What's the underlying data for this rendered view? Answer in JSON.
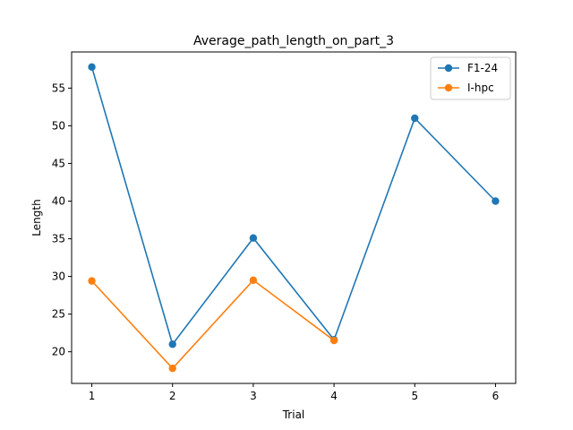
{
  "chart_data": {
    "type": "line",
    "title": "Average_path_length_on_part_3",
    "xlabel": "Trial",
    "ylabel": "Length",
    "xlim": [
      0.75,
      6.25
    ],
    "ylim": [
      15.8,
      59.8
    ],
    "xticks": [
      1,
      2,
      3,
      4,
      5,
      6
    ],
    "yticks": [
      20,
      25,
      30,
      35,
      40,
      45,
      50,
      55
    ],
    "grid": false,
    "legend_position": "top-right",
    "series": [
      {
        "name": "F1-24",
        "color": "#1f77b4",
        "x": [
          1,
          2,
          3,
          4,
          5,
          6
        ],
        "values": [
          57.8,
          21.0,
          35.1,
          21.6,
          51.0,
          40.0
        ]
      },
      {
        "name": "I-hpc",
        "color": "#ff7f0e",
        "x": [
          1,
          2,
          3,
          4
        ],
        "values": [
          29.4,
          17.8,
          29.5,
          21.5
        ]
      }
    ]
  }
}
